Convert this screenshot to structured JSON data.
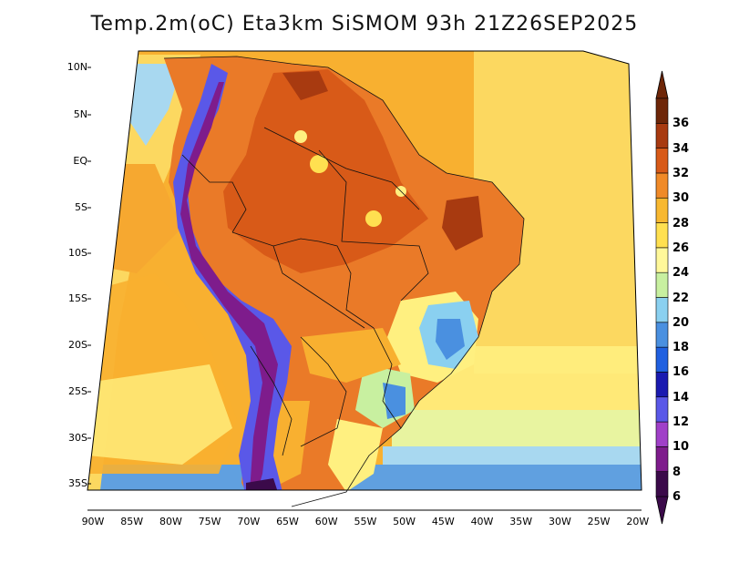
{
  "title": "Temp.2m(oC) Eta3km SiSMOM 93h 21Z26SEP2025",
  "lat_ticks": [
    "10N",
    "5N",
    "EQ",
    "5S",
    "10S",
    "15S",
    "20S",
    "25S",
    "30S",
    "35S"
  ],
  "lon_ticks": [
    "90W",
    "85W",
    "80W",
    "75W",
    "70W",
    "65W",
    "60W",
    "55W",
    "50W",
    "45W",
    "40W",
    "35W",
    "30W",
    "25W",
    "20W"
  ],
  "colorbar": {
    "labels": [
      "6",
      "8",
      "10",
      "12",
      "14",
      "16",
      "18",
      "20",
      "22",
      "24",
      "26",
      "28",
      "30",
      "32",
      "34",
      "36"
    ],
    "colors": [
      "#3b0a4a",
      "#7e1c8c",
      "#a040c8",
      "#5a58e8",
      "#1a1ab0",
      "#2060e0",
      "#4a90e0",
      "#8ad0f0",
      "#c8f0a0",
      "#fff89a",
      "#ffe050",
      "#f8b830",
      "#f08a28",
      "#d85a18",
      "#a83a10",
      "#6e2608"
    ]
  },
  "legend": {
    "sea_colors": [
      "#f8b030",
      "#f6a830",
      "#fcd860",
      "#fff080",
      "#e8f4a0",
      "#a8d8f0"
    ]
  }
}
